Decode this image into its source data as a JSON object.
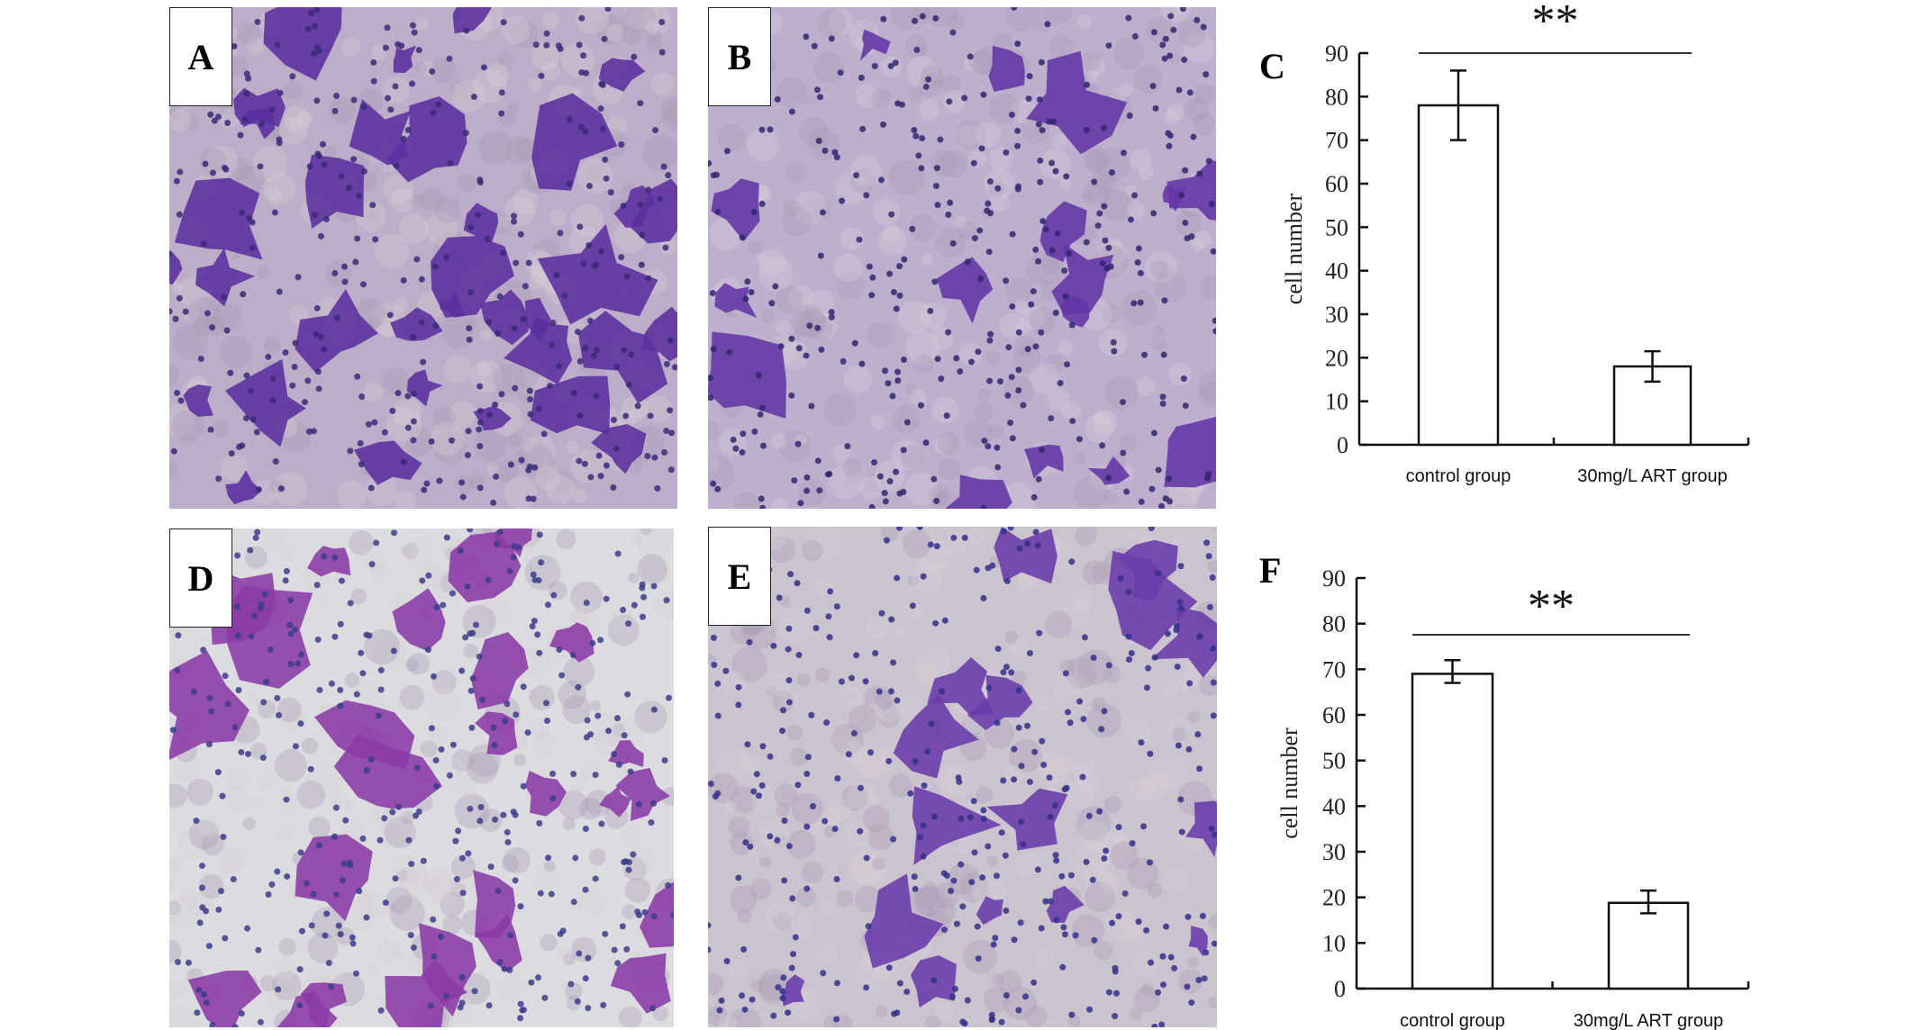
{
  "panels": [
    {
      "label": "A",
      "background": "#bcadc8",
      "stain": "#5b2f9e",
      "nucleus": "#3a2a7a"
    },
    {
      "label": "B",
      "background": "#bdb0cf",
      "stain": "#6334a6",
      "nucleus": "#33276e"
    },
    {
      "label": "D",
      "background": "#dcdce0",
      "stain": "#8a3aa6",
      "nucleus": "#3c3c8a"
    },
    {
      "label": "E",
      "background": "#cbc4cf",
      "stain": "#6a3aaa",
      "nucleus": "#34308a"
    }
  ],
  "chart_data": [
    {
      "panel_label": "C",
      "type": "bar",
      "categories": [
        "control group",
        "30mg/L ART group"
      ],
      "values": [
        78,
        18
      ],
      "error_low": [
        70,
        14.5
      ],
      "error_high": [
        86,
        21.5
      ],
      "ylabel": "cell number",
      "xlabel": "",
      "ylim": [
        0,
        90
      ],
      "yticks": [
        "0",
        "10",
        "20",
        "30",
        "40",
        "50",
        "60",
        "70",
        "80",
        "90"
      ],
      "significance": "**",
      "grid": false,
      "bar_color": "#ffffff"
    },
    {
      "panel_label": "F",
      "type": "bar",
      "categories": [
        "control group",
        "30mg/L ART group"
      ],
      "values": [
        69,
        18.8
      ],
      "error_low": [
        67,
        16.5
      ],
      "error_high": [
        72,
        21.5
      ],
      "ylabel": "cell number",
      "xlabel": "",
      "ylim": [
        0,
        90
      ],
      "yticks": [
        "0",
        "10",
        "20",
        "30",
        "40",
        "50",
        "60",
        "70",
        "80",
        "90"
      ],
      "significance": "**",
      "grid": false,
      "bar_color": "#ffffff"
    }
  ]
}
